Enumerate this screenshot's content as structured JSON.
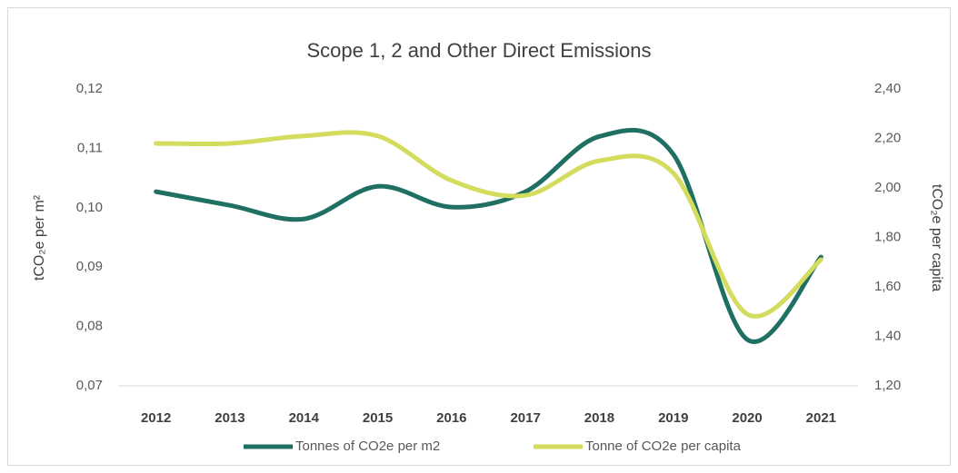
{
  "chart_data": {
    "type": "line",
    "title": "Scope 1, 2 and Other Direct Emissions",
    "ylabel": "tCO₂e per m²",
    "y2label": "tCO₂e per capita",
    "categories": [
      "2012",
      "2013",
      "2014",
      "2015",
      "2016",
      "2017",
      "2018",
      "2019",
      "2020",
      "2021"
    ],
    "series": [
      {
        "name": "Tonnes of CO2e per m2",
        "color": "#1f6f63",
        "axis": "y",
        "values": [
          0.1027,
          0.1004,
          0.0981,
          0.1036,
          0.1001,
          0.1027,
          0.112,
          0.109,
          0.0778,
          0.0917
        ]
      },
      {
        "name": "Tonne of CO2e per capita",
        "color": "#d4dc5e",
        "axis": "y2",
        "values": [
          2.18,
          2.18,
          2.21,
          2.21,
          2.03,
          1.97,
          2.11,
          2.06,
          1.49,
          1.71
        ]
      }
    ],
    "ylim": [
      0.07,
      0.12
    ],
    "yticks": [
      {
        "value": 0.07,
        "label": "0,07"
      },
      {
        "value": 0.08,
        "label": "0,08"
      },
      {
        "value": 0.09,
        "label": "0,09"
      },
      {
        "value": 0.1,
        "label": "0,10"
      },
      {
        "value": 0.11,
        "label": "0,11"
      },
      {
        "value": 0.12,
        "label": "0,12"
      }
    ],
    "y2lim": [
      1.2,
      2.4
    ],
    "y2ticks": [
      {
        "value": 1.2,
        "label": "1,20"
      },
      {
        "value": 1.4,
        "label": "1,40"
      },
      {
        "value": 1.6,
        "label": "1,60"
      },
      {
        "value": 1.8,
        "label": "1,80"
      },
      {
        "value": 2.0,
        "label": "2,00"
      },
      {
        "value": 2.2,
        "label": "2,20"
      },
      {
        "value": 2.4,
        "label": "2,40"
      }
    ],
    "grid": false,
    "smooth": true,
    "legend": "bottom"
  }
}
